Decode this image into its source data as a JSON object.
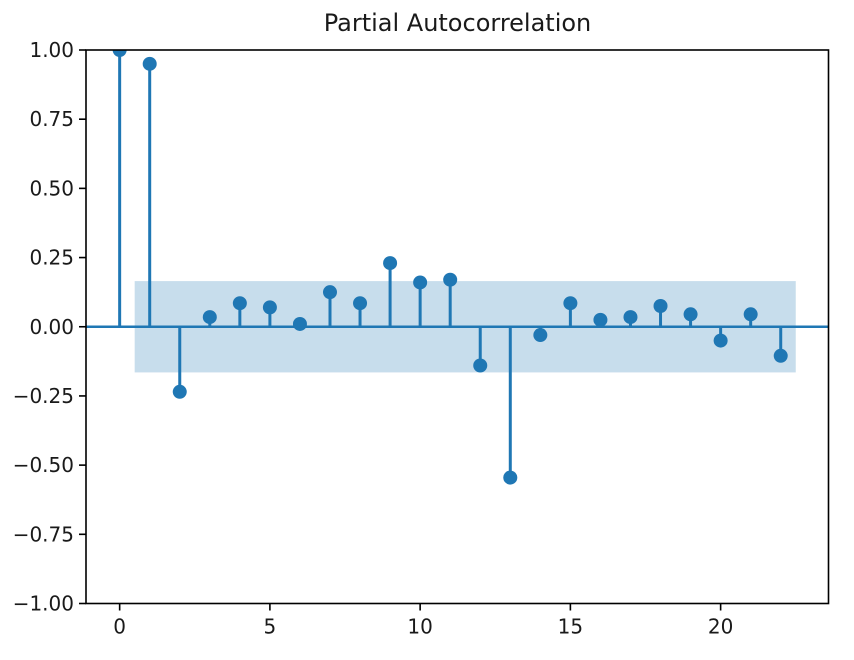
{
  "chart_data": {
    "type": "stem",
    "title": "Partial Autocorrelation",
    "xlabel": "",
    "ylabel": "",
    "x": [
      0,
      1,
      2,
      3,
      4,
      5,
      6,
      7,
      8,
      9,
      10,
      11,
      12,
      13,
      14,
      15,
      16,
      17,
      18,
      19,
      20,
      21,
      22
    ],
    "values": [
      1.0,
      0.95,
      -0.235,
      0.035,
      0.085,
      0.07,
      0.01,
      0.125,
      0.085,
      0.23,
      0.16,
      0.17,
      -0.14,
      -0.545,
      -0.03,
      0.085,
      0.025,
      0.035,
      0.075,
      0.045,
      -0.05,
      0.045,
      -0.105
    ],
    "confidence_band": {
      "upper": 0.165,
      "lower": -0.165,
      "x_start": 0.5,
      "x_end": 22.5
    },
    "xlim": [
      -1.12,
      23.59
    ],
    "ylim": [
      -1.0,
      1.0
    ],
    "x_ticks": [
      0,
      5,
      10,
      15,
      20
    ],
    "x_tick_labels": [
      "0",
      "5",
      "10",
      "15",
      "20"
    ],
    "y_ticks": [
      1.0,
      0.75,
      0.5,
      0.25,
      0.0,
      -0.25,
      -0.5,
      -0.75,
      -1.0
    ],
    "y_tick_labels": [
      "1.00",
      "0.75",
      "0.50",
      "0.25",
      "0.00",
      "−0.25",
      "−0.50",
      "−0.75",
      "−1.00"
    ],
    "grid": false,
    "legend": null,
    "colors": {
      "stem": "#1f77b4",
      "marker": "#1f77b4",
      "band": "rgba(31,119,180,0.25)",
      "spine": "#000000",
      "text": "#1a1a1a",
      "background": "#ffffff"
    }
  }
}
